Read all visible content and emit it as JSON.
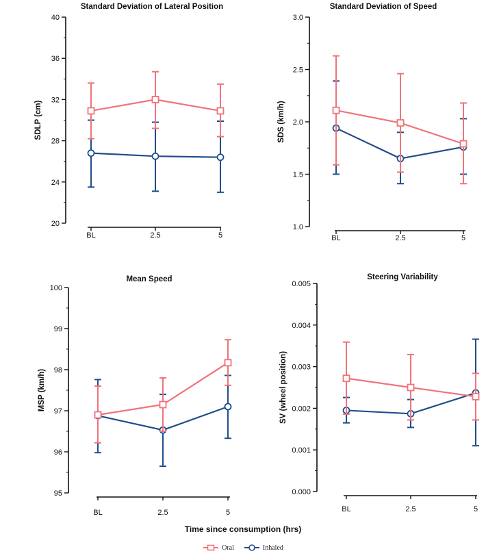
{
  "x_axis_label": "Time since consumption (hrs)",
  "legend": [
    {
      "label": "Oral",
      "color": "#f0737a",
      "marker": "square"
    },
    {
      "label": "Inhaled",
      "color": "#1f4e8c",
      "marker": "circle"
    }
  ],
  "chart_data": [
    {
      "type": "line",
      "title": "Standard Deviation of Lateral Position",
      "ylabel": "SDLP (cm)",
      "xlabel": "Time since consumption (hrs)",
      "categories": [
        "BL",
        "2.5",
        "5"
      ],
      "ylim": [
        20,
        40
      ],
      "yticks": [
        20,
        24,
        28,
        32,
        36,
        40
      ],
      "ytick_labels": [
        "20",
        "24",
        "28",
        "32",
        "36",
        "40"
      ],
      "series": [
        {
          "name": "Oral",
          "values": [
            30.9,
            32.0,
            30.9
          ],
          "err_low": [
            28.2,
            29.2,
            28.4
          ],
          "err_high": [
            33.6,
            34.7,
            33.5
          ]
        },
        {
          "name": "Inhaled",
          "values": [
            26.8,
            26.5,
            26.4
          ],
          "err_low": [
            23.5,
            23.1,
            23.0
          ],
          "err_high": [
            30.0,
            29.8,
            29.9
          ]
        }
      ]
    },
    {
      "type": "line",
      "title": "Standard Deviation of Speed",
      "ylabel": "SDS (km/h)",
      "xlabel": "Time since consumption (hrs)",
      "categories": [
        "BL",
        "2.5",
        "5"
      ],
      "ylim": [
        1.0,
        3.0
      ],
      "yticks": [
        1.0,
        1.5,
        2.0,
        2.5,
        3.0
      ],
      "ytick_labels": [
        "1.0",
        "1.5",
        "2.0",
        "2.5",
        "3.0"
      ],
      "series": [
        {
          "name": "Oral",
          "values": [
            2.11,
            1.99,
            1.79
          ],
          "err_low": [
            1.59,
            1.52,
            1.41
          ],
          "err_high": [
            2.63,
            2.46,
            2.18
          ]
        },
        {
          "name": "Inhaled",
          "values": [
            1.94,
            1.65,
            1.76
          ],
          "err_low": [
            1.5,
            1.41,
            1.5
          ],
          "err_high": [
            2.39,
            1.9,
            2.03
          ]
        }
      ]
    },
    {
      "type": "line",
      "title": "Mean Speed",
      "ylabel": "MSP (km/h)",
      "xlabel": "Time since consumption (hrs)",
      "categories": [
        "BL",
        "2.5",
        "5"
      ],
      "ylim": [
        95,
        100
      ],
      "yticks": [
        95,
        96,
        97,
        98,
        99,
        100
      ],
      "ytick_labels": [
        "95",
        "96",
        "97",
        "98",
        "99",
        "100"
      ],
      "series": [
        {
          "name": "Oral",
          "values": [
            96.9,
            97.15,
            98.17
          ],
          "err_low": [
            96.22,
            96.5,
            97.62
          ],
          "err_high": [
            97.6,
            97.8,
            98.73
          ]
        },
        {
          "name": "Inhaled",
          "values": [
            96.88,
            96.53,
            97.1
          ],
          "err_low": [
            95.98,
            95.65,
            96.33
          ],
          "err_high": [
            97.76,
            97.4,
            97.86
          ]
        }
      ]
    },
    {
      "type": "line",
      "title": "Steering Variability",
      "ylabel": "SV (wheel position)",
      "xlabel": "Time since consumption (hrs)",
      "categories": [
        "BL",
        "2.5",
        "5"
      ],
      "ylim": [
        0.0,
        0.005
      ],
      "yticks": [
        0.0,
        0.001,
        0.002,
        0.003,
        0.004,
        0.005
      ],
      "ytick_labels": [
        "0.000",
        "0.001",
        "0.002",
        "0.003",
        "0.004",
        "0.005"
      ],
      "series": [
        {
          "name": "Oral",
          "values": [
            0.00272,
            0.0025,
            0.00228
          ],
          "err_low": [
            0.00186,
            0.00172,
            0.00172
          ],
          "err_high": [
            0.00359,
            0.00329,
            0.00284
          ]
        },
        {
          "name": "Inhaled",
          "values": [
            0.00195,
            0.00187,
            0.00237
          ],
          "err_low": [
            0.00165,
            0.00154,
            0.0011
          ],
          "err_high": [
            0.00226,
            0.00221,
            0.00366
          ]
        }
      ]
    }
  ]
}
